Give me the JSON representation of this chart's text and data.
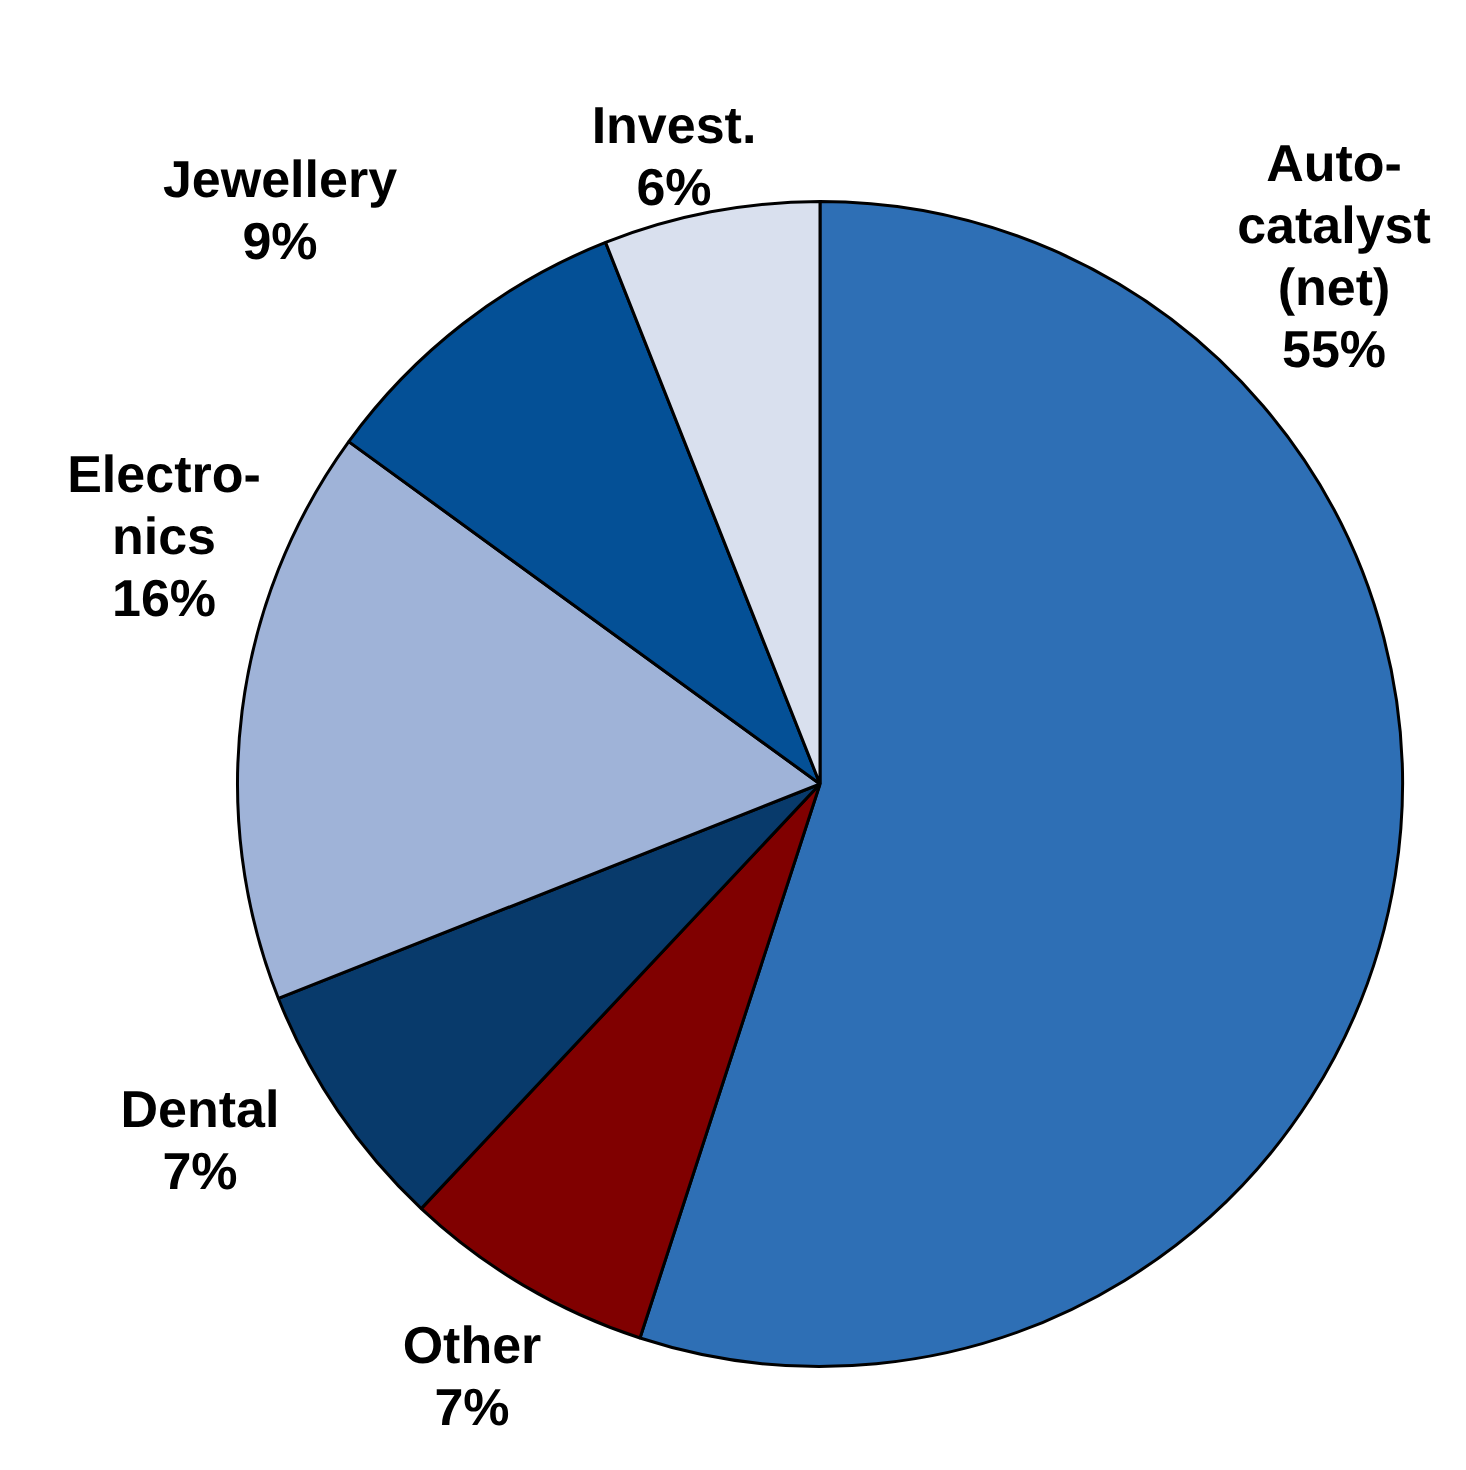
{
  "chart_data": {
    "type": "pie",
    "categories": [
      "Auto-\ncatalyst\n(net)",
      "Other",
      "Dental",
      "Electro-\nnics",
      "Jewellery",
      "Invest."
    ],
    "values": [
      55,
      7,
      7,
      16,
      9,
      6
    ],
    "colors": [
      "#2e6fb5",
      "#800000",
      "#083a6b",
      "#9fb3d8",
      "#045096",
      "#d9e0ee"
    ],
    "value_labels": [
      "55%",
      "7%",
      "7%",
      "16%",
      "9%",
      "6%"
    ],
    "legend": false
  }
}
